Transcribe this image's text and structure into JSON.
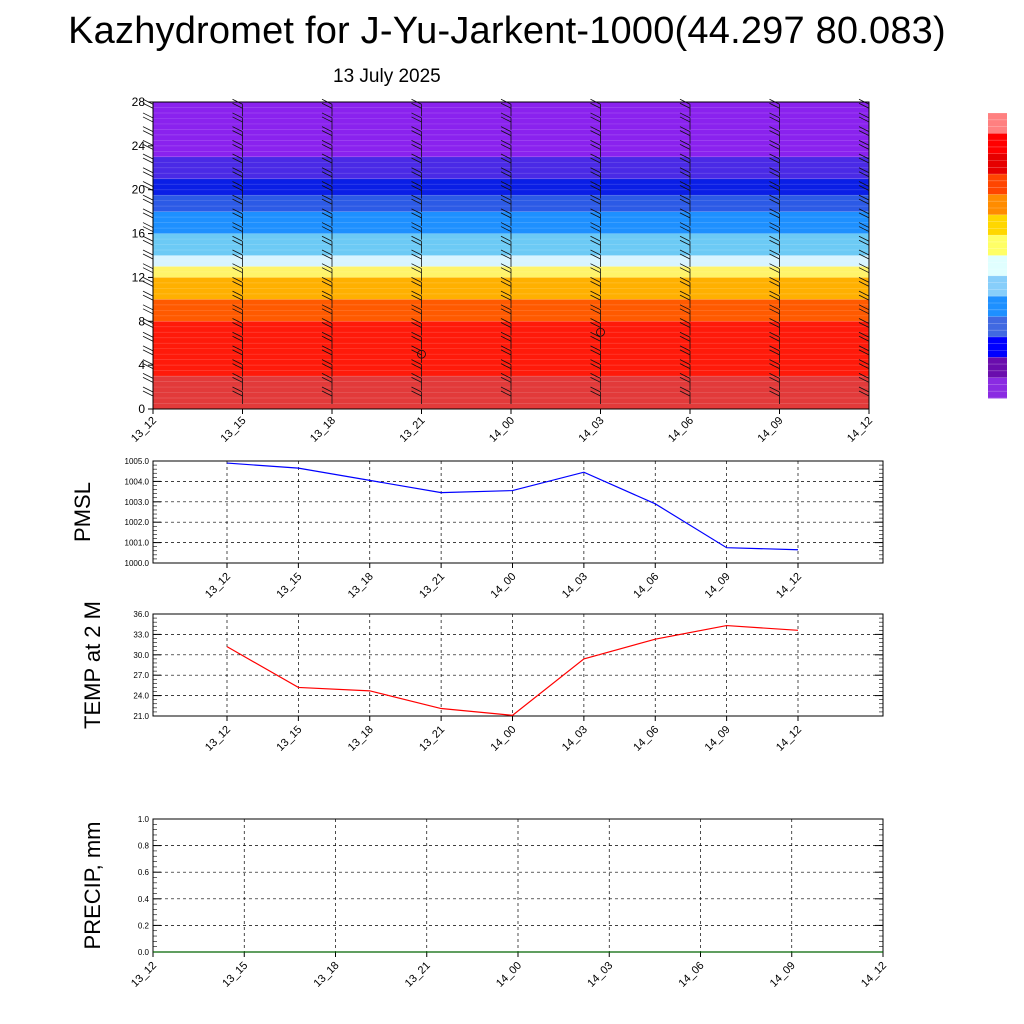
{
  "title": "Kazhydromet for J-Yu-Jarkent-1000(44.297 80.083)",
  "subtitle": "13 July 2025",
  "colors": {
    "pmsl_line": "#0000ff",
    "temp_line": "#ff0000",
    "precip_line": "#006400",
    "palette": [
      "#ff8080",
      "#ff0000",
      "#e60000",
      "#ff4500",
      "#ff8c00",
      "#ffd700",
      "#ffff66",
      "#e0ffff",
      "#87cefa",
      "#1e90ff",
      "#4169e1",
      "#0000ff",
      "#6a0dad",
      "#8a2be2"
    ]
  },
  "chart_data": [
    {
      "type": "heatmap",
      "x_labels": [
        "13_12",
        "13_15",
        "13_18",
        "13_21",
        "14_00",
        "14_03",
        "14_06",
        "14_09",
        "14_12"
      ],
      "y_ticks": [
        0,
        4,
        8,
        12,
        16,
        20,
        24,
        28
      ],
      "ylim": [
        0,
        28
      ],
      "grid": false,
      "bands": [
        {
          "from": 0,
          "to": 3,
          "color": "#e23a3a"
        },
        {
          "from": 3,
          "to": 8,
          "color": "#ff1a0a"
        },
        {
          "from": 8,
          "to": 10,
          "color": "#ff5a00"
        },
        {
          "from": 10,
          "to": 12,
          "color": "#ffb000"
        },
        {
          "from": 12,
          "to": 13,
          "color": "#fff46a"
        },
        {
          "from": 13,
          "to": 14,
          "color": "#d8f4ff"
        },
        {
          "from": 14,
          "to": 16,
          "color": "#6ccaf5"
        },
        {
          "from": 16,
          "to": 18,
          "color": "#1e90ff"
        },
        {
          "from": 18,
          "to": 19.5,
          "color": "#2c5ae6"
        },
        {
          "from": 19.5,
          "to": 21,
          "color": "#0a1ee6"
        },
        {
          "from": 21,
          "to": 23,
          "color": "#4a2ae6"
        },
        {
          "from": 23,
          "to": 28,
          "color": "#8a22ee"
        }
      ],
      "wind_barb_columns": [
        "13_12",
        "13_15",
        "13_18",
        "13_21",
        "14_00",
        "14_03",
        "14_06",
        "14_09",
        "14_12"
      ]
    },
    {
      "type": "line",
      "ylabel": "PMSL",
      "x_labels": [
        "13_12",
        "13_15",
        "13_18",
        "13_21",
        "14_00",
        "14_03",
        "14_06",
        "14_09",
        "14_12"
      ],
      "y_ticks": [
        "1000.0",
        "1001.0",
        "1002.0",
        "1003.0",
        "1004.0",
        "1005.0"
      ],
      "ylim": [
        1000,
        1005
      ],
      "grid": true,
      "series": [
        {
          "values": [
            1004.9,
            1004.65,
            1004.05,
            1003.45,
            1003.55,
            1004.45,
            1002.9,
            1000.75,
            1000.65
          ]
        }
      ]
    },
    {
      "type": "line",
      "ylabel": "TEMP at 2 M",
      "x_labels": [
        "13_12",
        "13_15",
        "13_18",
        "13_21",
        "14_00",
        "14_03",
        "14_06",
        "14_09",
        "14_12"
      ],
      "y_ticks": [
        "21.0",
        "24.0",
        "27.0",
        "30.0",
        "33.0",
        "36.0"
      ],
      "ylim": [
        21,
        36
      ],
      "grid": true,
      "series": [
        {
          "values": [
            31.2,
            25.2,
            24.7,
            22.1,
            21.1,
            29.4,
            32.3,
            34.3,
            33.6
          ]
        }
      ]
    },
    {
      "type": "line",
      "ylabel": "PRECIP, mm",
      "x_labels": [
        "13_12",
        "13_15",
        "13_18",
        "13_21",
        "14_00",
        "14_03",
        "14_06",
        "14_09",
        "14_12"
      ],
      "y_ticks": [
        "0.0",
        "0.2",
        "0.4",
        "0.6",
        "0.8",
        "1.0"
      ],
      "ylim": [
        0,
        1
      ],
      "grid": true,
      "series": [
        {
          "values": [
            0,
            0,
            0,
            0,
            0,
            0,
            0,
            0,
            0
          ]
        }
      ]
    }
  ]
}
